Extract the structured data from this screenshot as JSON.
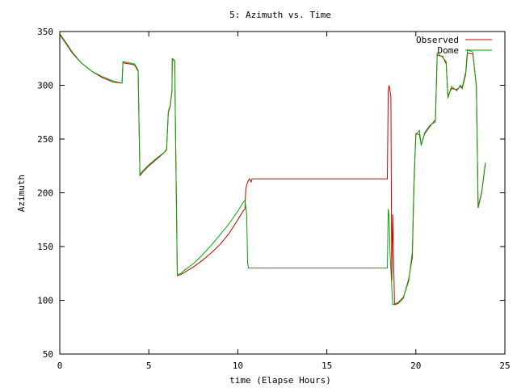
{
  "chart_data": {
    "type": "line",
    "title": "5: Azimuth vs. Time",
    "xlabel": "time (Elapse Hours)",
    "ylabel": "Azimuth",
    "xlim": [
      0,
      25
    ],
    "ylim": [
      50,
      350
    ],
    "xticks": [
      0,
      5,
      10,
      15,
      20,
      25
    ],
    "yticks": [
      50,
      100,
      150,
      200,
      250,
      300,
      350
    ],
    "grid": false,
    "legend_position": "top-right",
    "series": [
      {
        "name": "Observed",
        "color": "#cc0000",
        "points": [
          [
            0.0,
            347
          ],
          [
            0.3,
            340
          ],
          [
            0.7,
            330
          ],
          [
            1.2,
            321
          ],
          [
            1.8,
            313
          ],
          [
            2.4,
            307
          ],
          [
            3.0,
            303
          ],
          [
            3.5,
            302
          ],
          [
            3.55,
            321
          ],
          [
            4.2,
            319
          ],
          [
            4.4,
            313
          ],
          [
            4.5,
            216
          ],
          [
            4.7,
            220
          ],
          [
            5.0,
            225
          ],
          [
            5.5,
            232
          ],
          [
            5.9,
            238
          ],
          [
            6.0,
            240
          ],
          [
            6.1,
            275
          ],
          [
            6.2,
            280
          ],
          [
            6.3,
            294
          ],
          [
            6.32,
            324
          ],
          [
            6.45,
            323
          ],
          [
            6.6,
            123
          ],
          [
            6.8,
            124
          ],
          [
            7.0,
            126
          ],
          [
            7.5,
            131
          ],
          [
            8.0,
            137
          ],
          [
            8.5,
            144
          ],
          [
            9.0,
            152
          ],
          [
            9.5,
            162
          ],
          [
            10.0,
            175
          ],
          [
            10.3,
            183
          ],
          [
            10.4,
            185
          ],
          [
            10.45,
            204
          ],
          [
            10.55,
            210
          ],
          [
            10.65,
            213
          ],
          [
            10.75,
            210
          ],
          [
            10.8,
            213
          ],
          [
            12.0,
            213
          ],
          [
            15.0,
            213
          ],
          [
            18.4,
            213
          ],
          [
            18.45,
            295
          ],
          [
            18.5,
            300
          ],
          [
            18.6,
            289
          ],
          [
            18.65,
            118
          ],
          [
            18.7,
            180
          ],
          [
            18.8,
            96
          ],
          [
            19.0,
            97
          ],
          [
            19.3,
            102
          ],
          [
            19.6,
            120
          ],
          [
            19.8,
            140
          ],
          [
            19.9,
            210
          ],
          [
            20.0,
            255
          ],
          [
            20.2,
            254
          ],
          [
            20.3,
            245
          ],
          [
            20.5,
            255
          ],
          [
            20.8,
            262
          ],
          [
            21.1,
            268
          ],
          [
            21.2,
            328
          ],
          [
            21.5,
            327
          ],
          [
            21.7,
            320
          ],
          [
            21.8,
            290
          ],
          [
            22.0,
            297
          ],
          [
            22.3,
            296
          ],
          [
            22.5,
            299
          ],
          [
            22.6,
            297
          ],
          [
            22.8,
            310
          ],
          [
            22.9,
            330
          ],
          [
            23.2,
            329
          ],
          [
            23.4,
            300
          ],
          [
            23.5,
            186
          ],
          [
            23.7,
            200
          ],
          [
            23.9,
            227
          ]
        ]
      },
      {
        "name": "Dome",
        "color": "#00aa00",
        "points": [
          [
            0.0,
            348
          ],
          [
            0.3,
            341
          ],
          [
            0.7,
            331
          ],
          [
            1.2,
            321
          ],
          [
            1.8,
            313
          ],
          [
            2.4,
            308
          ],
          [
            3.0,
            304
          ],
          [
            3.5,
            302
          ],
          [
            3.55,
            322
          ],
          [
            4.2,
            320
          ],
          [
            4.4,
            314
          ],
          [
            4.5,
            217
          ],
          [
            4.7,
            221
          ],
          [
            5.0,
            226
          ],
          [
            5.5,
            233
          ],
          [
            5.9,
            238
          ],
          [
            6.0,
            241
          ],
          [
            6.1,
            276
          ],
          [
            6.2,
            281
          ],
          [
            6.3,
            295
          ],
          [
            6.32,
            325
          ],
          [
            6.45,
            323
          ],
          [
            6.6,
            124
          ],
          [
            6.8,
            125
          ],
          [
            7.0,
            128
          ],
          [
            7.5,
            134
          ],
          [
            8.0,
            142
          ],
          [
            8.5,
            151
          ],
          [
            9.0,
            161
          ],
          [
            9.5,
            171
          ],
          [
            10.0,
            183
          ],
          [
            10.3,
            191
          ],
          [
            10.4,
            193
          ],
          [
            10.5,
            180
          ],
          [
            10.55,
            135
          ],
          [
            10.6,
            130
          ],
          [
            12.0,
            130
          ],
          [
            15.0,
            130
          ],
          [
            18.4,
            130
          ],
          [
            18.45,
            185
          ],
          [
            18.5,
            178
          ],
          [
            18.55,
            145
          ],
          [
            18.7,
            96
          ],
          [
            19.0,
            98
          ],
          [
            19.3,
            103
          ],
          [
            19.6,
            118
          ],
          [
            19.8,
            145
          ],
          [
            19.9,
            215
          ],
          [
            20.0,
            254
          ],
          [
            20.2,
            258
          ],
          [
            20.3,
            244
          ],
          [
            20.5,
            256
          ],
          [
            20.8,
            263
          ],
          [
            21.1,
            266
          ],
          [
            21.2,
            330
          ],
          [
            21.5,
            326
          ],
          [
            21.7,
            322
          ],
          [
            21.8,
            288
          ],
          [
            22.0,
            299
          ],
          [
            22.3,
            295
          ],
          [
            22.5,
            300
          ],
          [
            22.6,
            298
          ],
          [
            22.8,
            312
          ],
          [
            22.9,
            333
          ],
          [
            23.2,
            331
          ],
          [
            23.4,
            298
          ],
          [
            23.5,
            187
          ],
          [
            23.7,
            201
          ],
          [
            23.9,
            228
          ]
        ]
      }
    ]
  }
}
